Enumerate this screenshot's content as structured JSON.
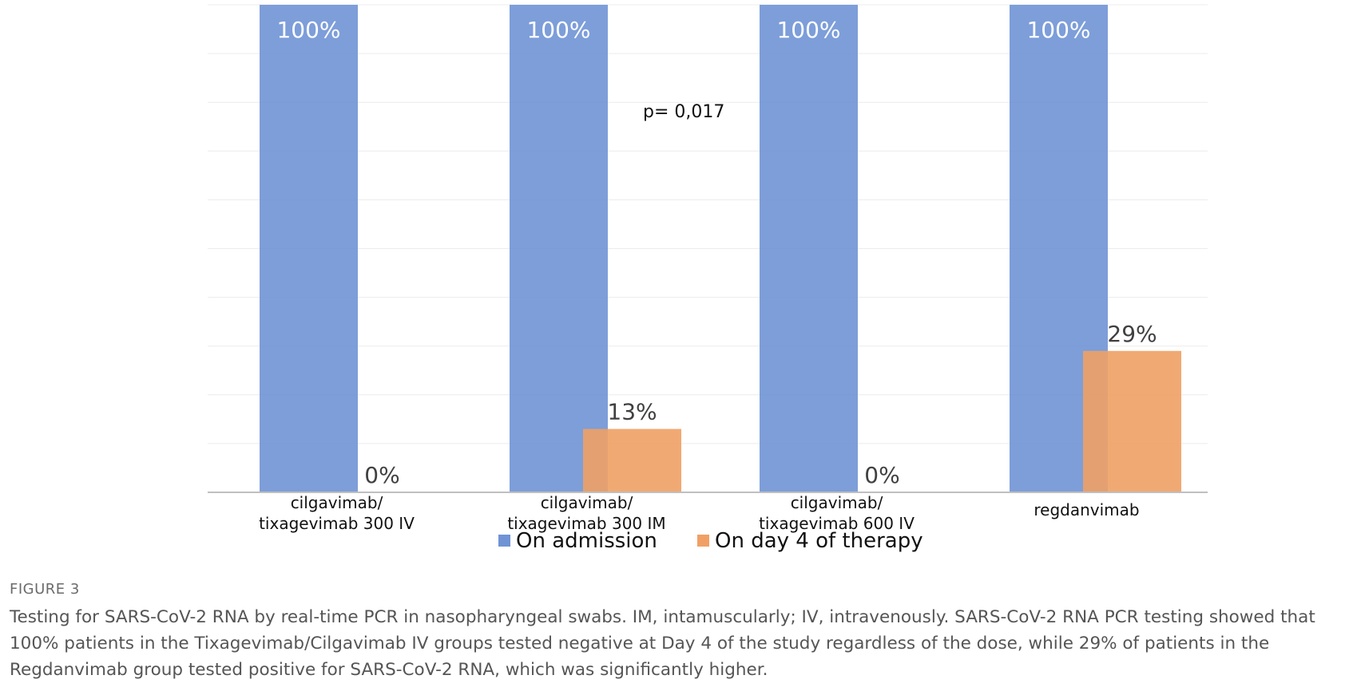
{
  "chart_data": {
    "type": "bar",
    "categories": [
      [
        "cilgavimab/",
        "tixagevimab 300 IV"
      ],
      [
        "cilgavimab/",
        "tixagevimab 300 IM"
      ],
      [
        "cilgavimab/",
        "tixagevimab 600 IV"
      ],
      [
        "regdanvimab"
      ]
    ],
    "series": [
      {
        "name": "On admission",
        "values": [
          100,
          100,
          100,
          100
        ],
        "labels": [
          "100%",
          "100%",
          "100%",
          "100%"
        ],
        "color": "#6f93d5"
      },
      {
        "name": "On day 4 of therapy",
        "values": [
          0,
          13,
          0,
          29
        ],
        "labels": [
          "0%",
          "13%",
          "0%",
          "29%"
        ],
        "color": "#f0a064"
      }
    ],
    "ylim": [
      0,
      100
    ],
    "grid": true,
    "legend": "bottom",
    "annotation": "p= 0,017"
  },
  "caption": {
    "figure_label": "FIGURE 3",
    "text": "Testing for SARS-CoV-2 RNA by real-time PCR in nasopharyngeal swabs. IM, intamuscularly; IV, intravenously. SARS-CoV-2 RNA PCR testing showed that 100% patients in the Tixagevimab/Cilgavimab IV groups tested negative at Day 4 of the study regardless of the dose, while 29% of patients in the Regdanvimab group tested positive for SARS-CoV-2 RNA, which was significantly higher."
  }
}
